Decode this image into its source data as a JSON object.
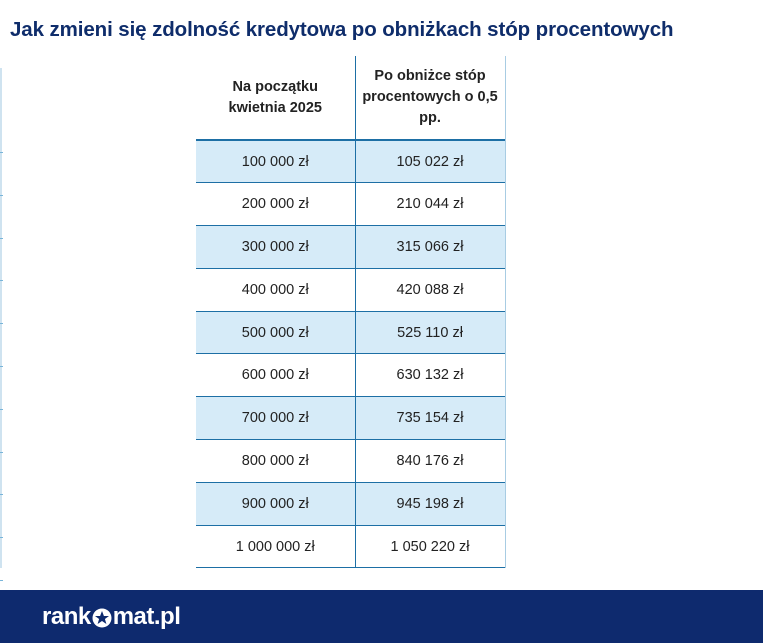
{
  "title": "Jak zmieni się zdolność kredytowa po obniżkach stóp procentowych",
  "table": {
    "headers": [
      "Na początku kwietnia 2025",
      "Po obniżce stóp procentowych o 0,5 pp."
    ],
    "rows": [
      [
        "100 000 zł",
        "105 022 zł"
      ],
      [
        "200 000 zł",
        "210 044 zł"
      ],
      [
        "300 000 zł",
        "315 066 zł"
      ],
      [
        "400 000 zł",
        "420 088 zł"
      ],
      [
        "500 000 zł",
        "525 110 zł"
      ],
      [
        "600 000 zł",
        "630 132 zł"
      ],
      [
        "700 000 zł",
        "735 154 zł"
      ],
      [
        "800 000 zł",
        "840 176 zł"
      ],
      [
        "900 000 zł",
        "945 198 zł"
      ],
      [
        "1 000 000 zł",
        "1 050 220 zł"
      ]
    ]
  },
  "footer": {
    "logo_prefix": "rank",
    "logo_suffix": "mat.pl",
    "logo_icon": "star-icon"
  },
  "colors": {
    "title": "#0f2d6b",
    "footer_bg": "#0e2a6e",
    "row_shade": "#d6ebf8",
    "border": "#1d6fa5"
  }
}
